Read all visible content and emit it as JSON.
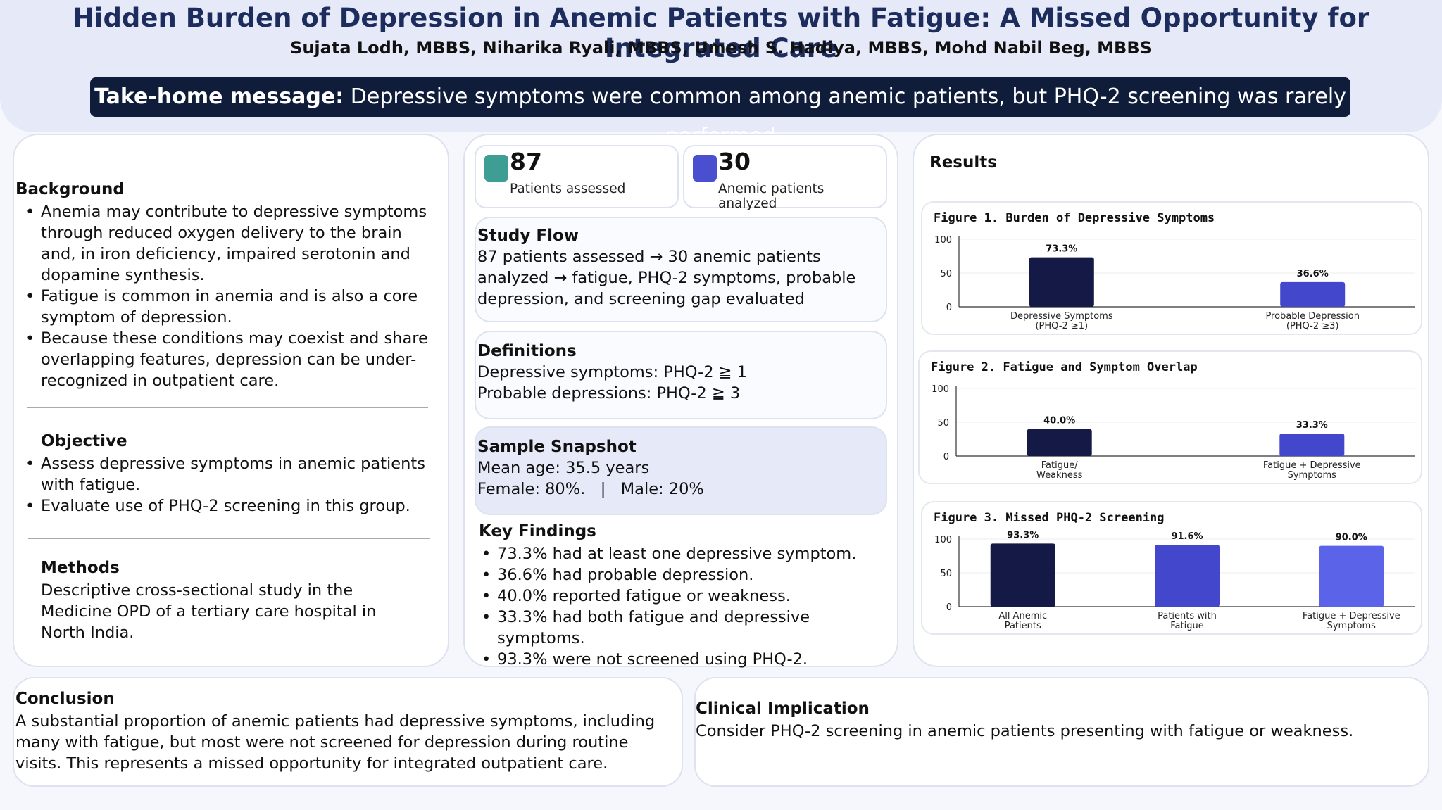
{
  "header": {
    "title": "Hidden Burden of Depression in Anemic Patients with Fatigue: A Missed Opportunity for Integrated Care",
    "authors": "Sujata Lodh, MBBS, Niharika Ryali, MBBS, Umesh S. Hadiya, MBBS, Mohd Nabil Beg, MBBS",
    "takehome_label": "Take-home message:",
    "takehome_text": " Depressive symptoms were common among anemic patients, but PHQ-2 screening was rarely performed"
  },
  "left": {
    "background_heading": "Background",
    "background_items": [
      "Anemia may contribute to depressive symptoms through reduced oxygen delivery to the brain and, in iron deficiency, impaired serotonin and dopamine synthesis.",
      "Fatigue is common in anemia and is also a core symptom of depression.",
      "Because these conditions may coexist and share overlapping features, depression can be under-recognized in outpatient care."
    ],
    "objective_heading": "Objective",
    "objective_items": [
      "Assess depressive symptoms in anemic patients with fatigue.",
      "Evaluate use of PHQ-2 screening in this group."
    ],
    "methods_heading": "Methods",
    "methods_text": "Descriptive cross-sectional study in the Medicine OPD of a tertiary care hospital in North India."
  },
  "middle": {
    "stats": [
      {
        "value": "87",
        "label": "Patients assessed",
        "color": "#3e9e94"
      },
      {
        "value": "30",
        "label": "Anemic patients analyzed",
        "color": "#4a4fcf"
      }
    ],
    "study_flow_heading": "Study Flow",
    "study_flow_text": "87 patients assessed → 30 anemic patients analyzed → fatigue, PHQ-2 symptoms, probable depression, and screening gap evaluated",
    "definitions_heading": "Definitions",
    "definitions_lines": [
      "Depressive symptoms: PHQ-2 ≧ 1",
      "Probable depressions: PHQ-2 ≧ 3"
    ],
    "snapshot_heading": "Sample Snapshot",
    "snapshot_lines": [
      "Mean age: 35.5 years",
      "Female: 80%.   |   Male: 20%"
    ],
    "findings_heading": "Key Findings",
    "findings_items": [
      "73.3% had at least one depressive symptom.",
      "36.6% had probable depression.",
      "40.0% reported fatigue or weakness.",
      "33.3% had both fatigue and depressive symptoms.",
      "93.3% were not screened using PHQ-2."
    ]
  },
  "results": {
    "heading": "Results"
  },
  "chart_data": [
    {
      "type": "bar",
      "title": "Figure 1. Burden of Depressive Symptoms",
      "categories": [
        [
          "Depressive Symptoms",
          "(PHQ-2 ≥1)"
        ],
        [
          "Probable Depression",
          "(PHQ-2 ≥3)"
        ]
      ],
      "values": [
        73.3,
        36.6
      ],
      "labels": [
        "73.3%",
        "36.6%"
      ],
      "colors": [
        "#141a45",
        "#4347cc"
      ],
      "ylim": [
        0,
        100
      ],
      "yticks": [
        0,
        50,
        100
      ]
    },
    {
      "type": "bar",
      "title": "Figure 2. Fatigue and Symptom Overlap",
      "categories": [
        [
          "Fatigue/",
          "Weakness"
        ],
        [
          "Fatigue + Depressive",
          "Symptoms"
        ]
      ],
      "values": [
        40.0,
        33.3
      ],
      "labels": [
        "40.0%",
        "33.3%"
      ],
      "colors": [
        "#141a45",
        "#4347cc"
      ],
      "ylim": [
        0,
        100
      ],
      "yticks": [
        0,
        50,
        100
      ]
    },
    {
      "type": "bar",
      "title": "Figure 3. Missed PHQ-2 Screening",
      "categories": [
        [
          "All Anemic",
          "Patients"
        ],
        [
          "Patients with",
          "Fatigue"
        ],
        [
          "Fatigue + Depressive",
          "Symptoms"
        ]
      ],
      "values": [
        93.3,
        91.6,
        90.0
      ],
      "labels": [
        "93.3%",
        "91.6%",
        "90.0%"
      ],
      "colors": [
        "#141a45",
        "#4347cc",
        "#5b63e8"
      ],
      "ylim": [
        0,
        100
      ],
      "yticks": [
        0,
        50,
        100
      ]
    }
  ],
  "bottom": {
    "conclusion_heading": "Conclusion",
    "conclusion_text": "A substantial proportion of anemic patients had depressive symptoms, including many with fatigue, but most were not screened for depression during routine visits. This represents a missed opportunity for integrated outpatient care.",
    "implication_heading": "Clinical Implication",
    "implication_text": "Consider PHQ-2 screening in anemic patients presenting with fatigue or weakness."
  }
}
